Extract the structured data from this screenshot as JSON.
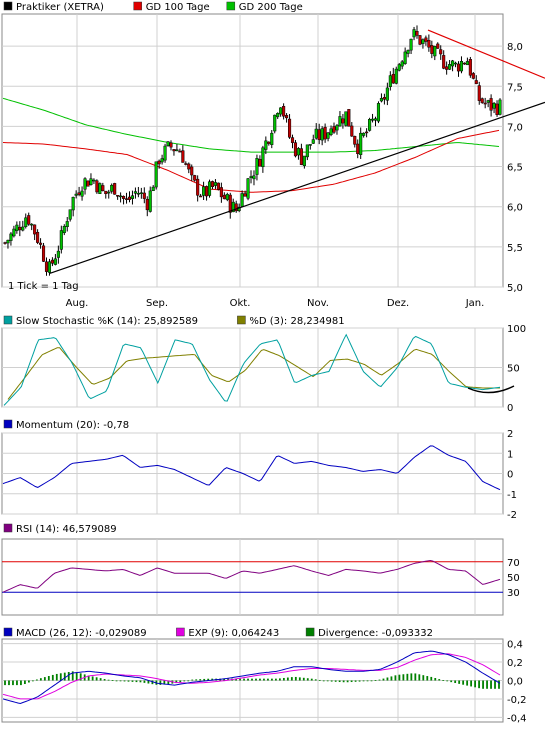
{
  "chart_data": [
    {
      "panel": "price",
      "type": "candlestick",
      "x_labels": [
        "Aug.",
        "Sep.",
        "Okt.",
        "Nov.",
        "Dez.",
        "Jan."
      ],
      "y_ticks": [
        "5,0",
        "5,5",
        "6,0",
        "6,5",
        "7,0",
        "7,5",
        "8,0"
      ],
      "ylim": [
        5.0,
        8.4
      ],
      "annotation": "1 Tick = 1 Tag",
      "grid": true,
      "legend": [
        {
          "name": "Praktiker (XETRA)",
          "color": "#000000"
        },
        {
          "name": "GD 100 Tage",
          "color": "#e00000"
        },
        {
          "name": "GD 200 Tage",
          "color": "#00c000"
        }
      ],
      "series": {
        "close_anchors": [
          5.55,
          5.72,
          5.9,
          5.6,
          5.2,
          5.55,
          6.05,
          6.3,
          6.35,
          6.15,
          6.25,
          6.05,
          6.2,
          6.05,
          6.6,
          6.75,
          6.7,
          6.3,
          6.15,
          6.25,
          6.1,
          5.95,
          6.3,
          6.55,
          6.9,
          7.35,
          6.8,
          6.6,
          6.85,
          6.9,
          7.05,
          7.15,
          6.75,
          6.95,
          7.2,
          7.55,
          7.85,
          8.15,
          8.05,
          7.9,
          7.8,
          7.75,
          7.85,
          7.35,
          7.25,
          7.25
        ],
        "gd100": [
          6.8,
          6.78,
          6.72,
          6.65,
          6.45,
          6.22,
          6.18,
          6.2,
          6.28,
          6.42,
          6.62,
          6.85,
          6.95
        ],
        "gd200": [
          7.35,
          7.2,
          7.02,
          6.9,
          6.8,
          6.72,
          6.68,
          6.68,
          6.68,
          6.7,
          6.75,
          6.8,
          6.75
        ]
      },
      "trendlines": [
        {
          "color": "#000000",
          "from": {
            "x": "Jul.",
            "y": 5.17
          },
          "to": {
            "x": "Jan.",
            "y": 7.3
          }
        },
        {
          "color": "#e00000",
          "from": {
            "x": "Dez.",
            "y": 8.2
          },
          "to": {
            "x": "Jan.",
            "y": 7.6
          }
        }
      ]
    },
    {
      "panel": "stochastic",
      "type": "line",
      "y_ticks": [
        "0",
        "50",
        "100"
      ],
      "ylim": [
        0,
        100
      ],
      "legend": [
        {
          "name": "Slow Stochastic %K (14): 25,892589",
          "color": "#00a0a0"
        },
        {
          "name": "%D (3): 28,234981",
          "color": "#808000"
        }
      ],
      "series": [
        {
          "values": [
            2,
            25,
            85,
            88,
            55,
            10,
            20,
            80,
            75,
            30,
            85,
            80,
            35,
            5,
            55,
            80,
            85,
            30,
            40,
            45,
            92,
            45,
            25,
            50,
            90,
            80,
            30,
            25,
            22,
            25
          ]
        }
      ]
    },
    {
      "panel": "momentum",
      "type": "line",
      "y_ticks": [
        "-2",
        "-1",
        "0",
        "1",
        "2"
      ],
      "ylim": [
        -2,
        2
      ],
      "legend": [
        {
          "name": "Momentum (20): -0,78",
          "color": "#0000c0"
        }
      ],
      "series": [
        {
          "values": [
            -0.5,
            -0.2,
            -0.7,
            -0.2,
            0.5,
            0.6,
            0.7,
            0.9,
            0.3,
            0.4,
            0.2,
            -0.2,
            -0.6,
            0.3,
            0.0,
            -0.4,
            0.9,
            0.5,
            0.6,
            0.4,
            0.3,
            0.1,
            0.2,
            0.0,
            0.8,
            1.4,
            0.9,
            0.6,
            -0.4,
            -0.8
          ]
        }
      ]
    },
    {
      "panel": "rsi",
      "type": "line",
      "y_ticks": [
        "30",
        "50",
        "70"
      ],
      "ylim": [
        0,
        100
      ],
      "reference_lines": [
        {
          "y": 70,
          "color": "#e00000"
        },
        {
          "y": 30,
          "color": "#0000c0"
        }
      ],
      "legend": [
        {
          "name": "RSI (14): 46,579089",
          "color": "#800080"
        }
      ],
      "series": [
        {
          "values": [
            30,
            40,
            35,
            55,
            62,
            60,
            58,
            60,
            52,
            62,
            55,
            55,
            55,
            48,
            58,
            55,
            60,
            65,
            58,
            52,
            60,
            58,
            55,
            60,
            68,
            72,
            60,
            58,
            40,
            47
          ]
        }
      ]
    },
    {
      "panel": "macd",
      "type": "line+bar",
      "y_ticks": [
        "-0,4",
        "-0,2",
        "0,0",
        "0,2",
        "0,4"
      ],
      "ylim": [
        -0.45,
        0.45
      ],
      "legend": [
        {
          "name": "MACD (26, 12): -0,029089",
          "color": "#0000c0"
        },
        {
          "name": "EXP (9): 0,064243",
          "color": "#e000e0"
        },
        {
          "name": "Divergence: -0,093332",
          "color": "#008000"
        }
      ],
      "series": [
        {
          "values": [
            -0.2,
            -0.25,
            -0.18,
            -0.05,
            0.08,
            0.1,
            0.08,
            0.05,
            0.03,
            -0.03,
            -0.05,
            -0.02,
            0.0,
            0.02,
            0.05,
            0.08,
            0.1,
            0.15,
            0.15,
            0.12,
            0.1,
            0.1,
            0.12,
            0.2,
            0.3,
            0.32,
            0.28,
            0.2,
            0.08,
            -0.03
          ]
        },
        {
          "values": [
            -0.15,
            -0.2,
            -0.2,
            -0.12,
            -0.02,
            0.05,
            0.07,
            0.06,
            0.05,
            0.02,
            -0.02,
            -0.03,
            -0.02,
            0.0,
            0.03,
            0.06,
            0.08,
            0.11,
            0.13,
            0.13,
            0.12,
            0.11,
            0.11,
            0.14,
            0.22,
            0.28,
            0.29,
            0.25,
            0.17,
            0.06
          ]
        }
      ],
      "divergence": [
        -0.05,
        -0.05,
        0.02,
        0.07,
        0.1,
        0.05,
        0.01,
        -0.01,
        -0.02,
        -0.05,
        -0.03,
        0.01,
        0.02,
        0.02,
        0.02,
        0.02,
        0.02,
        0.04,
        0.02,
        -0.01,
        -0.02,
        -0.01,
        0.01,
        0.06,
        0.08,
        0.04,
        -0.01,
        -0.05,
        -0.09,
        -0.09
      ]
    }
  ]
}
